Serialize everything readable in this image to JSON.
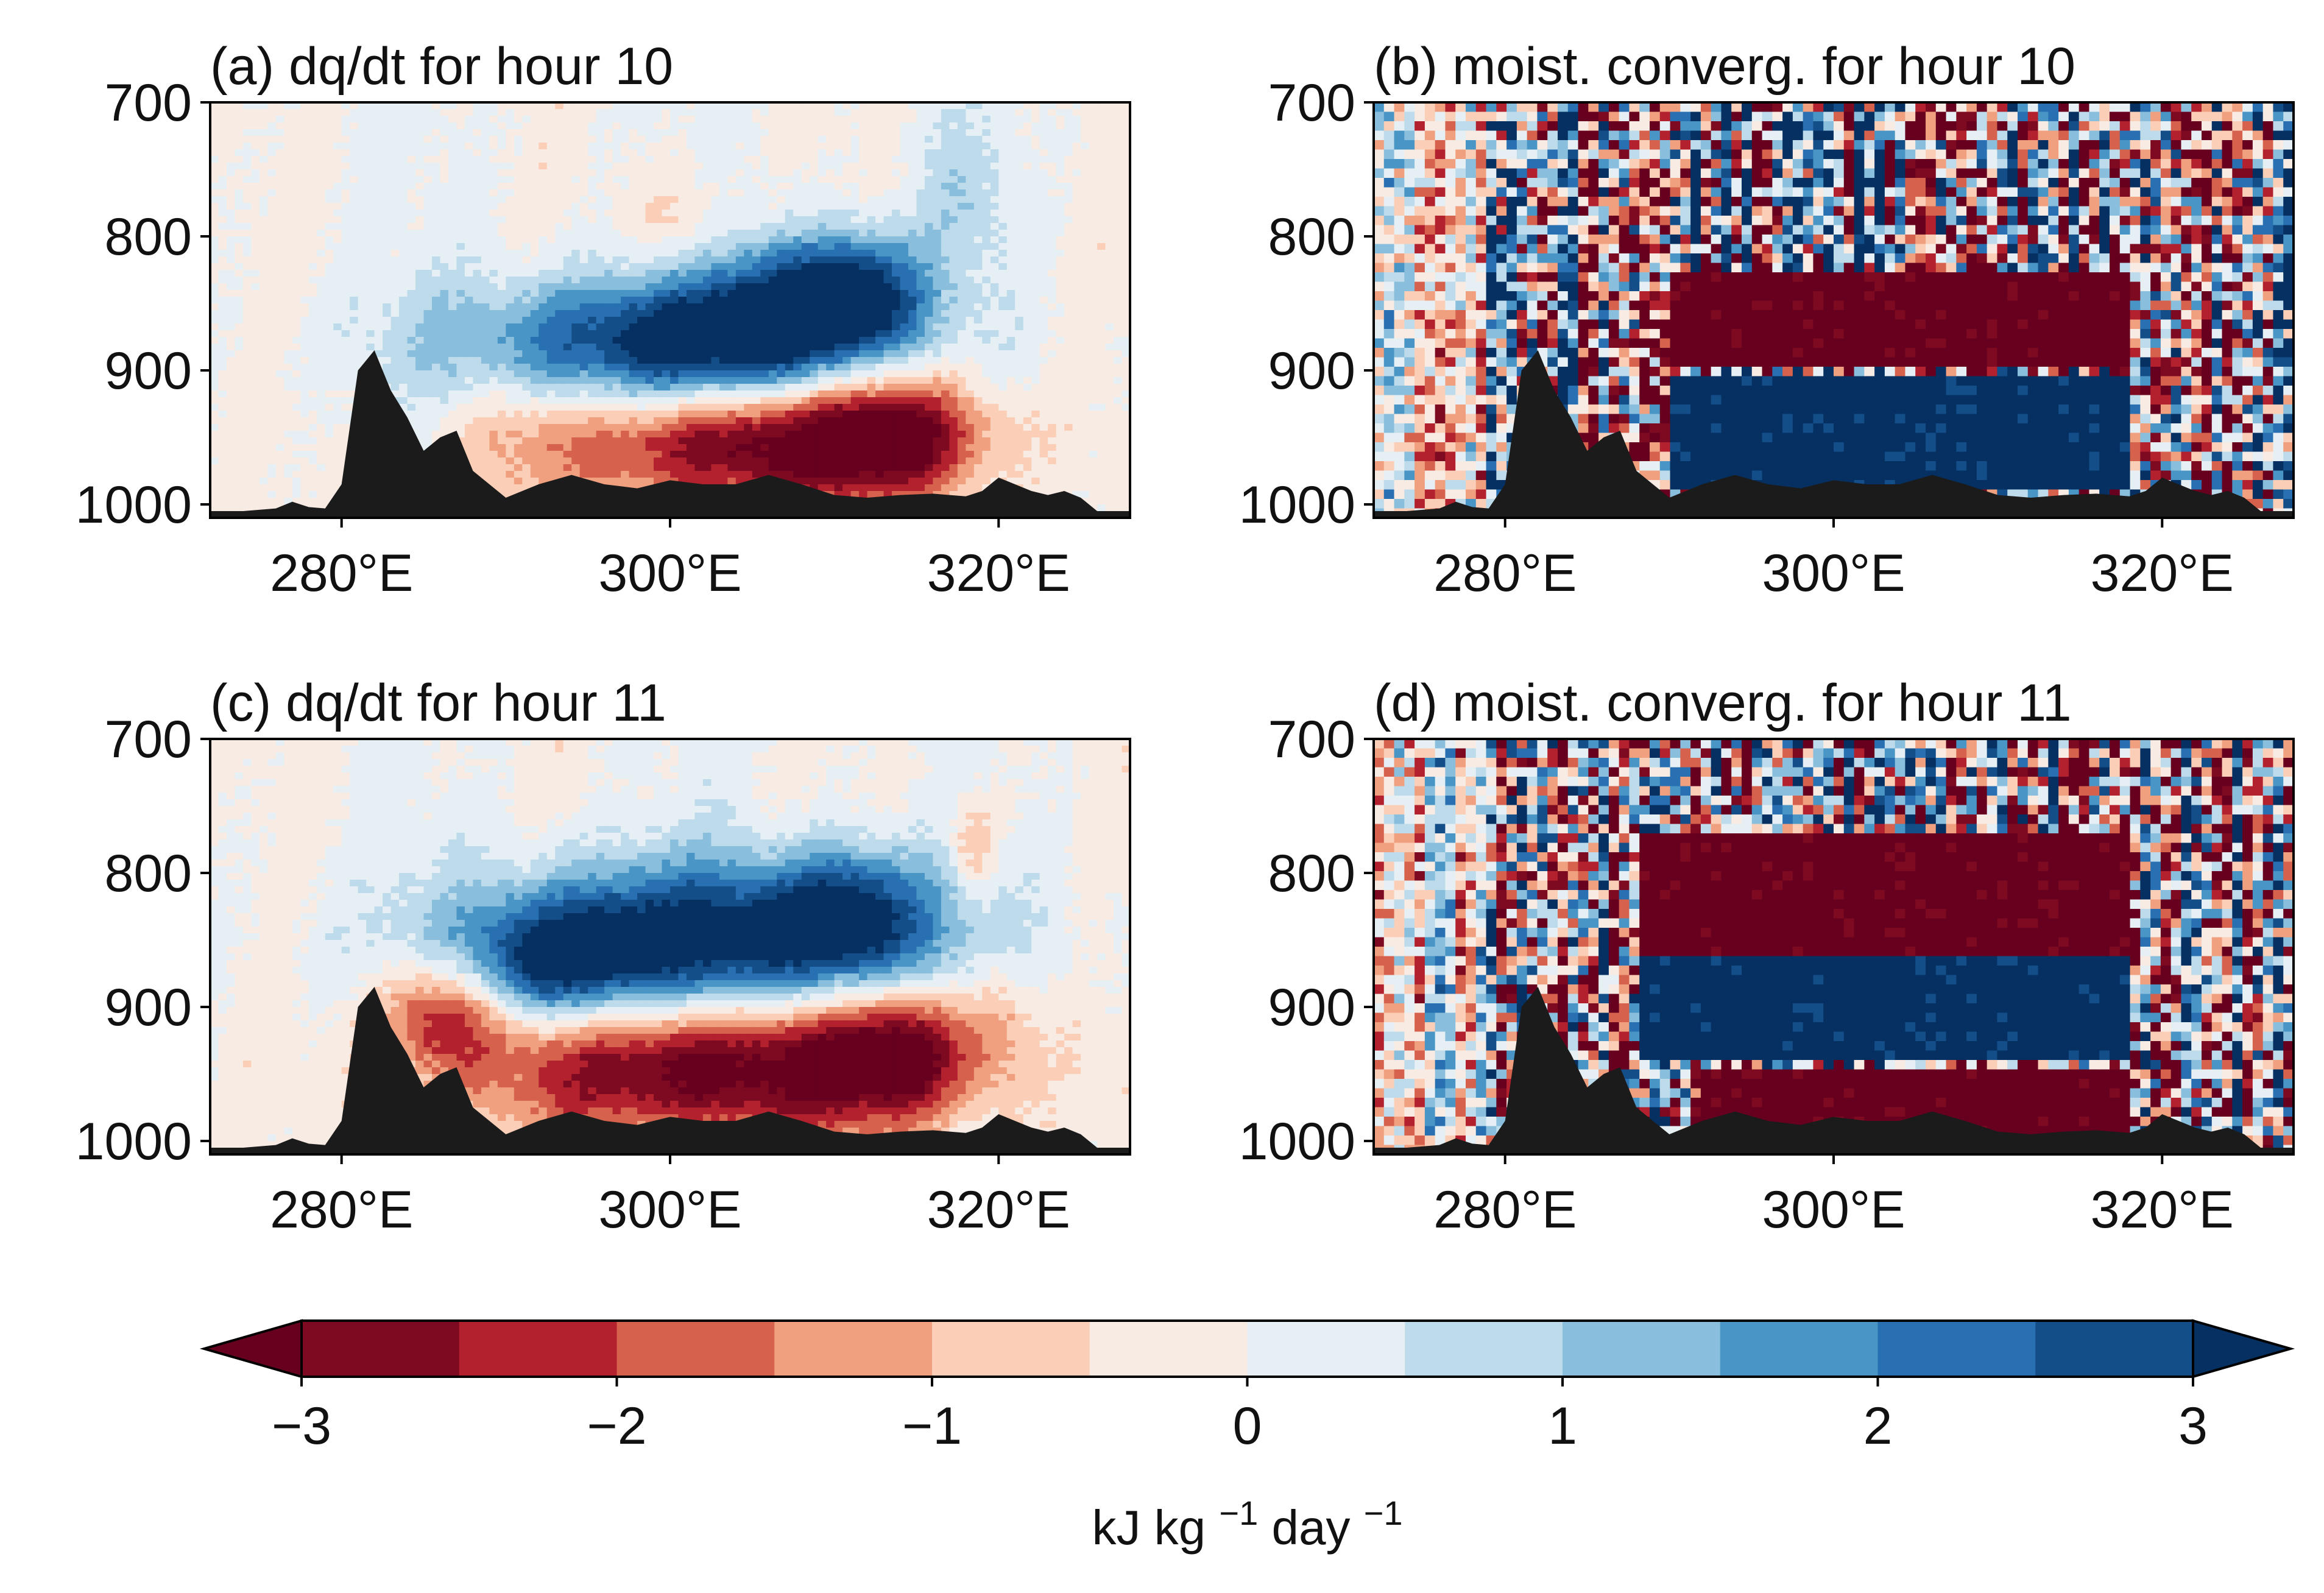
{
  "chart_data": [
    {
      "type": "heatmap",
      "title": "(a) dq/dt for hour 10",
      "xlabel": "",
      "ylabel": "",
      "xlim": [
        272,
        328
      ],
      "ylim": [
        1010,
        700
      ],
      "xticks": [
        280,
        300,
        320
      ],
      "xtick_labels": [
        "280°E",
        "300°E",
        "320°E"
      ],
      "yticks": [
        700,
        800,
        900,
        1000
      ],
      "ytick_labels": [
        "700",
        "800",
        "900",
        "1000"
      ],
      "field": "smooth",
      "features": [
        {
          "kind": "blob",
          "x": 300.0,
          "p": 880,
          "sx": 9.0,
          "sp": 35,
          "v": -3.4
        },
        {
          "kind": "blob",
          "x": 308.0,
          "p": 850,
          "sx": 4.0,
          "sp": 35,
          "v": -2.6
        },
        {
          "kind": "blob",
          "x": 312.0,
          "p": 840,
          "sx": 2.5,
          "sp": 30,
          "v": -2.0
        },
        {
          "kind": "blob",
          "x": 305.0,
          "p": 955,
          "sx": 8.0,
          "sp": 32,
          "v": 3.4
        },
        {
          "kind": "blob",
          "x": 314.0,
          "p": 945,
          "sx": 3.5,
          "sp": 35,
          "v": 2.4
        },
        {
          "kind": "blob",
          "x": 300.5,
          "p": 790,
          "sx": 2.0,
          "sp": 30,
          "v": 0.8
        },
        {
          "kind": "blob",
          "x": 318.0,
          "p": 770,
          "sx": 2.0,
          "sp": 40,
          "v": -0.7
        },
        {
          "kind": "blob",
          "x": 290.0,
          "p": 950,
          "sx": 3.0,
          "sp": 40,
          "v": 0.6
        }
      ]
    },
    {
      "type": "heatmap",
      "title": "(b) moist. converg. for hour 10",
      "xlabel": "",
      "ylabel": "",
      "xlim": [
        272,
        328
      ],
      "ylim": [
        1010,
        700
      ],
      "xticks": [
        280,
        300,
        320
      ],
      "xtick_labels": [
        "280°E",
        "300°E",
        "320°E"
      ],
      "yticks": [
        700,
        800,
        900,
        1000
      ],
      "ytick_labels": [
        "700",
        "800",
        "900",
        "1000"
      ],
      "field": "noisy",
      "bands": [
        {
          "x0": 290,
          "x1": 318,
          "p0": 830,
          "p1": 895,
          "v": -3.5
        },
        {
          "x0": 290,
          "x1": 318,
          "p0": 905,
          "p1": 990,
          "v": 3.5
        }
      ]
    },
    {
      "type": "heatmap",
      "title": "(c) dq/dt for hour 11",
      "xlabel": "",
      "ylabel": "",
      "xlim": [
        272,
        328
      ],
      "ylim": [
        1010,
        700
      ],
      "xticks": [
        280,
        300,
        320
      ],
      "xtick_labels": [
        "280°E",
        "300°E",
        "320°E"
      ],
      "yticks": [
        700,
        800,
        900,
        1000
      ],
      "ytick_labels": [
        "700",
        "800",
        "900",
        "1000"
      ],
      "field": "smooth",
      "features": [
        {
          "kind": "blob",
          "x": 302.0,
          "p": 850,
          "sx": 10.0,
          "sp": 40,
          "v": -3.6
        },
        {
          "kind": "blob",
          "x": 293.0,
          "p": 870,
          "sx": 3.5,
          "sp": 30,
          "v": -2.2
        },
        {
          "kind": "blob",
          "x": 311.0,
          "p": 830,
          "sx": 3.0,
          "sp": 35,
          "v": -2.2
        },
        {
          "kind": "blob",
          "x": 303.0,
          "p": 945,
          "sx": 10.0,
          "sp": 38,
          "v": 3.6
        },
        {
          "kind": "blob",
          "x": 286.0,
          "p": 905,
          "sx": 2.5,
          "sp": 30,
          "v": 2.4
        },
        {
          "kind": "blob",
          "x": 314.0,
          "p": 930,
          "sx": 3.0,
          "sp": 35,
          "v": 2.2
        },
        {
          "kind": "blob",
          "x": 318.5,
          "p": 780,
          "sx": 1.0,
          "sp": 25,
          "v": 1.2
        },
        {
          "kind": "blob",
          "x": 320.0,
          "p": 900,
          "sx": 1.2,
          "sp": 30,
          "v": 0.9
        }
      ]
    },
    {
      "type": "heatmap",
      "title": "(d) moist. converg. for hour 11",
      "xlabel": "",
      "ylabel": "",
      "xlim": [
        272,
        328
      ],
      "ylim": [
        1010,
        700
      ],
      "xticks": [
        280,
        300,
        320
      ],
      "xtick_labels": [
        "280°E",
        "300°E",
        "320°E"
      ],
      "yticks": [
        700,
        800,
        900,
        1000
      ],
      "ytick_labels": [
        "700",
        "800",
        "900",
        "1000"
      ],
      "field": "noisy",
      "bands": [
        {
          "x0": 288,
          "x1": 318,
          "p0": 770,
          "p1": 860,
          "v": -3.5
        },
        {
          "x0": 288,
          "x1": 318,
          "p0": 860,
          "p1": 940,
          "v": 3.5
        },
        {
          "x0": 292,
          "x1": 318,
          "p0": 950,
          "p1": 995,
          "v": -3.5
        }
      ]
    }
  ],
  "terrain": {
    "x": [
      272,
      274,
      276,
      277,
      278,
      279,
      280,
      281,
      282,
      283,
      284,
      285,
      286,
      287,
      288,
      289,
      290,
      292,
      294,
      296,
      298,
      300,
      302,
      304,
      306,
      308,
      310,
      312,
      314,
      316,
      318,
      319,
      320,
      321,
      322,
      323,
      324,
      325,
      326,
      328
    ],
    "p": [
      1005,
      1005,
      1003,
      998,
      1002,
      1003,
      985,
      900,
      885,
      915,
      935,
      960,
      950,
      945,
      975,
      985,
      995,
      985,
      978,
      985,
      988,
      982,
      985,
      985,
      978,
      985,
      993,
      995,
      993,
      992,
      994,
      990,
      980,
      985,
      990,
      993,
      990,
      995,
      1005,
      1005
    ]
  },
  "colorbar": {
    "levels": [
      -3,
      -2.5,
      -2,
      -1.5,
      -1,
      -0.5,
      0,
      0.5,
      1,
      1.5,
      2,
      2.5,
      3
    ],
    "colors": [
      "#7d0a20",
      "#b4212e",
      "#d6624d",
      "#f09f7f",
      "#fbcfb7",
      "#f8ebe3",
      "#e6eff4",
      "#bddbea",
      "#89bfdc",
      "#4895c6",
      "#2870b1",
      "#144e89"
    ],
    "under_color": "#67001f",
    "over_color": "#053061",
    "ticks": [
      -3,
      -2,
      -1,
      0,
      1,
      2,
      3
    ],
    "tick_labels": [
      "−3",
      "−2",
      "−1",
      "0",
      "1",
      "2",
      "3"
    ],
    "label": "kJ kg",
    "label_sup1": "−1",
    "label_mid": "day",
    "label_sup2": "−1",
    "extend": "both"
  }
}
